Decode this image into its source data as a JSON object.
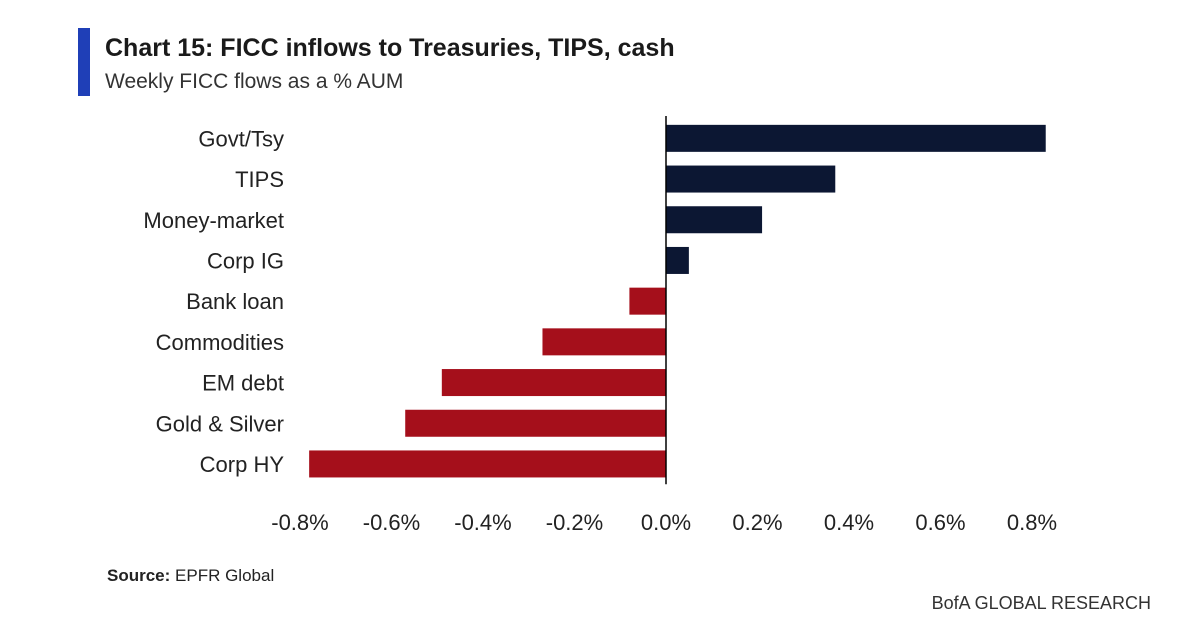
{
  "header": {
    "title": "Chart 15: FICC inflows to Treasuries, TIPS, cash",
    "subtitle": "Weekly FICC flows as a % AUM"
  },
  "chart_data": {
    "type": "bar",
    "orientation": "horizontal",
    "categories": [
      "Govt/Tsy",
      "TIPS",
      "Money-market",
      "Corp IG",
      "Bank loan",
      "Commodities",
      "EM debt",
      "Gold & Silver",
      "Corp HY"
    ],
    "values": [
      0.83,
      0.37,
      0.21,
      0.05,
      -0.08,
      -0.27,
      -0.49,
      -0.57,
      -0.78
    ],
    "xlim": [
      -0.8,
      0.8
    ],
    "xticks": [
      -0.8,
      -0.6,
      -0.4,
      -0.2,
      0.0,
      0.2,
      0.4,
      0.6,
      0.8
    ],
    "xtick_labels": [
      "-0.8%",
      "-0.6%",
      "-0.4%",
      "-0.2%",
      "0.0%",
      "0.2%",
      "0.4%",
      "0.6%",
      "0.8%"
    ],
    "unit": "%",
    "colors": {
      "positive": "#0c1733",
      "negative": "#a50f1b",
      "axis": "#000000"
    },
    "grid": false
  },
  "footer": {
    "source_label": "Source:",
    "source_text": " EPFR Global",
    "brand": "BofA GLOBAL RESEARCH"
  }
}
